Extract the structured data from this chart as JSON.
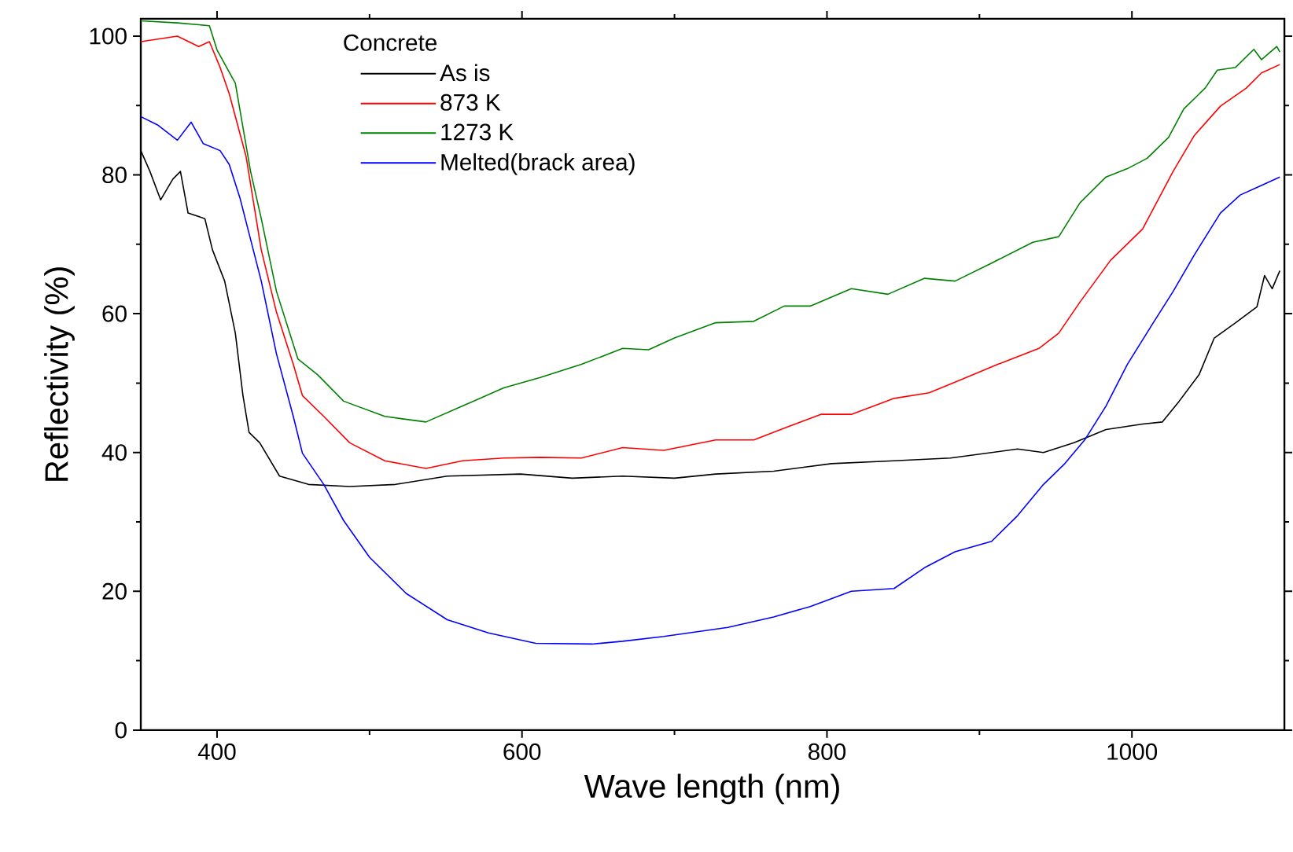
{
  "chart_data": {
    "type": "line",
    "xlabel": "Wave length (nm)",
    "ylabel": "Reflectivity (%)",
    "legend_title": "Concrete",
    "legend": "top",
    "grid": false,
    "xlim": [
      350,
      1100
    ],
    "ylim": [
      0,
      102.5
    ],
    "xticks": [
      400,
      600,
      800,
      1000
    ],
    "yticks": [
      0,
      20,
      40,
      60,
      80,
      100
    ],
    "series": [
      {
        "name": "As is",
        "color": "#000000",
        "x": [
          350,
          356,
          363,
          371,
          376,
          381,
          392,
          397,
          405,
          412,
          417,
          421,
          428,
          441,
          460,
          487,
          517,
          551,
          599,
          633,
          666,
          700,
          727,
          765,
          803,
          844,
          881,
          925,
          942,
          962,
          983,
          1007,
          1020,
          1031,
          1044,
          1054,
          1068,
          1082,
          1087,
          1092,
          1097
        ],
        "values": [
          83.5,
          80.5,
          76.4,
          79.4,
          80.5,
          74.5,
          73.7,
          69.2,
          64.7,
          57.2,
          48.2,
          42.9,
          41.4,
          36.6,
          35.4,
          35.1,
          35.4,
          36.6,
          36.9,
          36.3,
          36.6,
          36.3,
          36.9,
          37.3,
          38.4,
          38.8,
          39.2,
          40.5,
          40,
          41.4,
          43.3,
          44.1,
          44.4,
          47.4,
          51.2,
          56.5,
          58.7,
          61,
          65.5,
          63.6,
          66.2
        ]
      },
      {
        "name": "873 K",
        "color": "#ff0000",
        "x": [
          350,
          374,
          388,
          395,
          402,
          408,
          419,
          429,
          439,
          450,
          456,
          470,
          487,
          510,
          537,
          561,
          588,
          612,
          639,
          666,
          693,
          727,
          752,
          772,
          796,
          816,
          844,
          867,
          888,
          912,
          939,
          952,
          966,
          986,
          1007,
          1027,
          1041,
          1058,
          1075,
          1085,
          1097
        ],
        "values": [
          99.2,
          100,
          98.5,
          99.2,
          95.5,
          91.7,
          82.7,
          69.2,
          60.2,
          52.7,
          48.2,
          45.2,
          41.4,
          38.8,
          37.7,
          38.8,
          39.2,
          39.3,
          39.2,
          40.7,
          40.3,
          41.8,
          41.8,
          43.5,
          45.5,
          45.5,
          47.8,
          48.6,
          50.5,
          52.7,
          55,
          57.2,
          61.7,
          67.7,
          72.2,
          80.5,
          85.7,
          89.9,
          92.5,
          94.7,
          95.9
        ]
      },
      {
        "name": "1273 K",
        "color": "#008000",
        "x": [
          350,
          374,
          395,
          400,
          412,
          422,
          429,
          439,
          453,
          466,
          483,
          510,
          537,
          561,
          588,
          612,
          639,
          666,
          683,
          700,
          727,
          752,
          772,
          789,
          816,
          840,
          864,
          884,
          908,
          935,
          952,
          966,
          983,
          997,
          1010,
          1024,
          1034,
          1048,
          1056,
          1068,
          1080,
          1085,
          1095,
          1097
        ],
        "values": [
          102.2,
          101.9,
          101.5,
          98,
          93.2,
          80.5,
          73.7,
          63.2,
          53.5,
          51.2,
          47.4,
          45.2,
          44.4,
          46.7,
          49.3,
          50.8,
          52.7,
          55,
          54.8,
          56.5,
          58.7,
          58.9,
          61.1,
          61.1,
          63.6,
          62.8,
          65.1,
          64.7,
          67.3,
          70.3,
          71.1,
          76,
          79.7,
          80.9,
          82.4,
          85.4,
          89.5,
          92.5,
          95.1,
          95.5,
          98.1,
          96.6,
          98.5,
          97.7
        ]
      },
      {
        "name": "Melted(brack area)",
        "color": "#0000ff",
        "x": [
          350,
          361,
          374,
          383,
          391,
          402,
          408,
          415,
          422,
          429,
          439,
          450,
          456,
          470,
          483,
          500,
          524,
          551,
          578,
          609,
          646,
          666,
          693,
          735,
          765,
          789,
          816,
          844,
          864,
          884,
          908,
          925,
          942,
          956,
          969,
          983,
          997,
          1014,
          1027,
          1041,
          1058,
          1071,
          1082,
          1097
        ],
        "values": [
          88.4,
          87.2,
          85,
          87.6,
          84.5,
          83.5,
          81.5,
          76.7,
          70.7,
          64.7,
          54.2,
          45.2,
          39.9,
          35.4,
          30.2,
          24.9,
          19.7,
          15.9,
          14,
          12.5,
          12.4,
          12.8,
          13.5,
          14.8,
          16.3,
          17.8,
          20,
          20.4,
          23.4,
          25.7,
          27.2,
          30.9,
          35.4,
          38.4,
          41.8,
          46.7,
          52.7,
          58.7,
          63.2,
          68.5,
          74.5,
          77.1,
          78.2,
          79.7
        ]
      }
    ]
  }
}
